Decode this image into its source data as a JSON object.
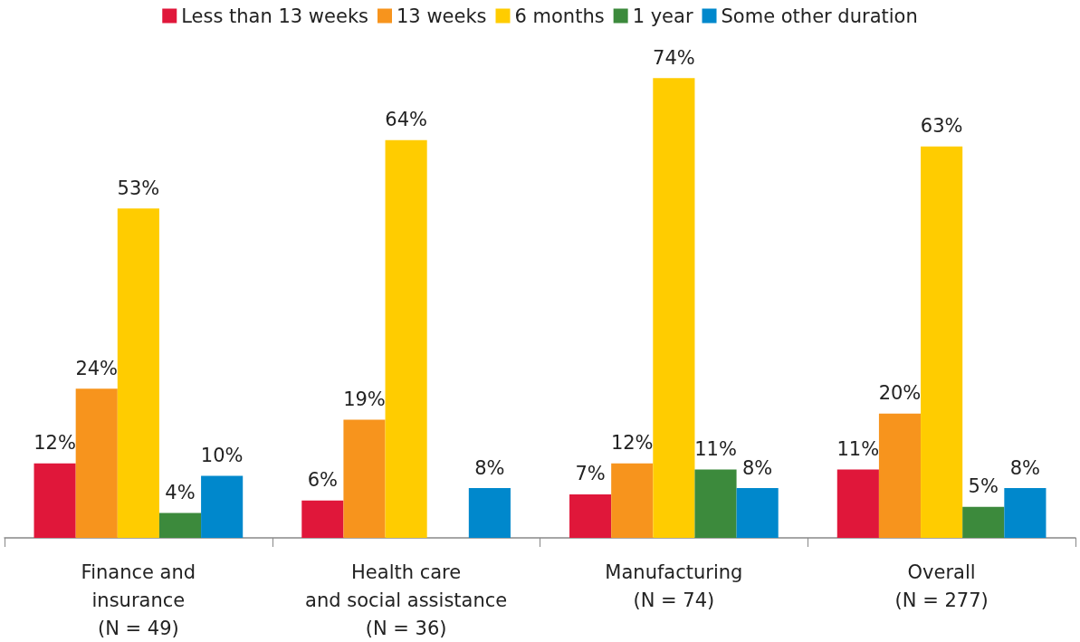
{
  "chart_data": {
    "type": "bar",
    "categories": [
      "Finance and\ninsurance\n(N = 49)",
      "Health care\nand social assistance\n(N = 36)",
      "Manufacturing\n(N = 74)",
      "Overall\n(N = 277)"
    ],
    "series": [
      {
        "name": "Less than 13 weeks",
        "color": "#e0173a",
        "values": [
          12,
          6,
          7,
          11
        ],
        "value_labels": [
          "12%",
          "6%",
          "7%",
          "11%"
        ]
      },
      {
        "name": "13 weeks",
        "color": "#f7941d",
        "values": [
          24,
          19,
          12,
          20
        ],
        "value_labels": [
          "24%",
          "19%",
          "12%",
          "20%"
        ]
      },
      {
        "name": "6 months",
        "color": "#ffcc00",
        "values": [
          53,
          64,
          74,
          63
        ],
        "value_labels": [
          "53%",
          "64%",
          "74%",
          "63%"
        ]
      },
      {
        "name": "1 year",
        "color": "#3c8a3c",
        "values": [
          4,
          null,
          11,
          5
        ],
        "value_labels": [
          "4%",
          null,
          "11%",
          "5%"
        ]
      },
      {
        "name": "Some other duration",
        "color": "#0088cc",
        "values": [
          10,
          8,
          8,
          8
        ],
        "value_labels": [
          "10%",
          "8%",
          "8%",
          "8%"
        ]
      }
    ],
    "legend": "top",
    "grid": false
  }
}
